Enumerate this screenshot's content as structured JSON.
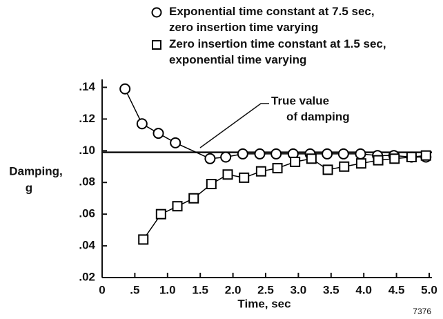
{
  "chart_data": {
    "type": "line",
    "xlabel": "Time, sec",
    "ylabel": [
      "Damping,",
      "g"
    ],
    "figure_number": "7376",
    "xlim": [
      0,
      5
    ],
    "ylim": [
      0.02,
      0.145
    ],
    "xticks": [
      0,
      {
        "value": 0.5,
        "label": ".5"
      },
      {
        "value": 1,
        "label": "1.0"
      },
      {
        "value": 1.5,
        "label": "1.5"
      },
      {
        "value": 2,
        "label": "2.0"
      },
      {
        "value": 2.5,
        "label": "2.5"
      },
      {
        "value": 3,
        "label": "3.0"
      },
      {
        "value": 3.5,
        "label": "3.5"
      },
      {
        "value": 4,
        "label": "4.0"
      },
      {
        "value": 4.5,
        "label": "4.5"
      },
      {
        "value": 5,
        "label": "5.0"
      }
    ],
    "yticks": [
      {
        "value": 0.02,
        "label": ".02"
      },
      {
        "value": 0.04,
        "label": ".04"
      },
      {
        "value": 0.06,
        "label": ".06"
      },
      {
        "value": 0.08,
        "label": ".08"
      },
      {
        "value": 0.1,
        "label": ".10"
      },
      {
        "value": 0.12,
        "label": ".12"
      },
      {
        "value": 0.14,
        "label": ".14"
      }
    ],
    "true_value": 0.099,
    "annotation": [
      "True value",
      "of damping"
    ],
    "series": [
      {
        "name": "Exponential time constant at 7.5 sec, zero insertion time varying",
        "marker": "circle",
        "color": "#000000",
        "x": [
          0.35,
          0.61,
          0.86,
          1.12,
          1.65,
          1.89,
          2.15,
          2.41,
          2.66,
          2.92,
          3.18,
          3.44,
          3.69,
          3.95,
          4.21,
          4.46,
          4.73,
          4.95
        ],
        "values": [
          0.139,
          0.117,
          0.111,
          0.105,
          0.095,
          0.096,
          0.098,
          0.098,
          0.098,
          0.098,
          0.098,
          0.098,
          0.098,
          0.098,
          0.097,
          0.097,
          0.096,
          0.096
        ]
      },
      {
        "name": "Zero insertion time constant at 1.5 sec, exponential time varying",
        "marker": "square",
        "color": "#000000",
        "x": [
          0.63,
          0.9,
          1.15,
          1.4,
          1.67,
          1.92,
          2.17,
          2.43,
          2.68,
          2.95,
          3.2,
          3.45,
          3.7,
          3.96,
          4.22,
          4.47,
          4.73,
          4.95
        ],
        "values": [
          0.044,
          0.06,
          0.065,
          0.07,
          0.079,
          0.085,
          0.083,
          0.087,
          0.089,
          0.093,
          0.095,
          0.088,
          0.09,
          0.092,
          0.094,
          0.095,
          0.096,
          0.097
        ]
      }
    ]
  }
}
